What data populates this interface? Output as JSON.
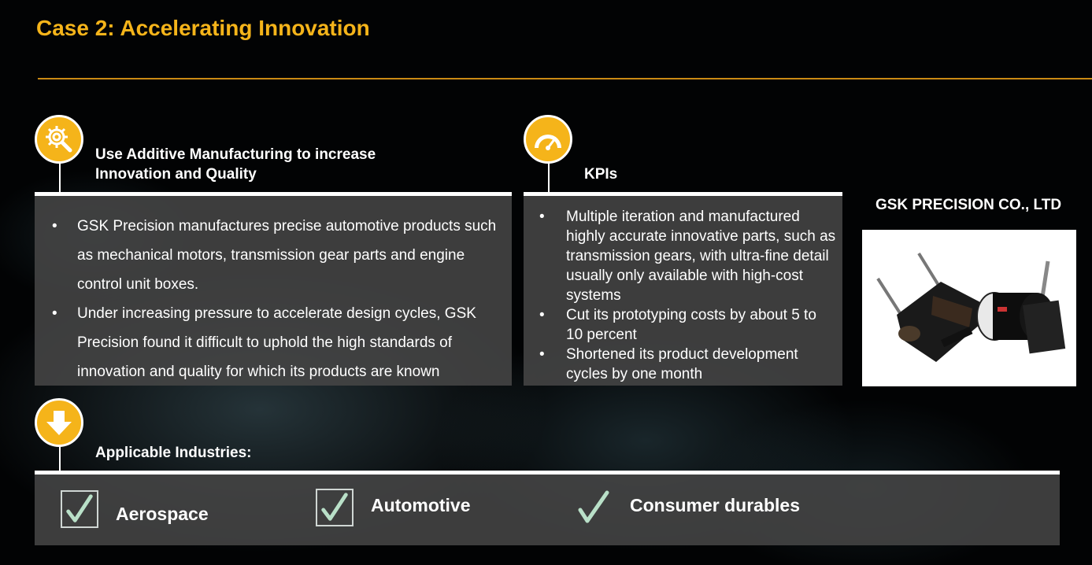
{
  "title": "Case 2: Accelerating Innovation",
  "case_section": {
    "heading_line1": "Use Additive Manufacturing to increase",
    "heading_line2": "Innovation and Quality",
    "bullets": [
      "GSK Precision manufactures precise automotive products such as mechanical motors, transmission gear parts and engine control unit boxes.",
      "Under increasing pressure to accelerate design cycles, GSK Precision found it difficult to uphold the high standards of innovation and quality for which its products are known"
    ]
  },
  "kpi_section": {
    "heading": "KPIs",
    "bullets": [
      "Multiple iteration and manufactured highly accurate innovative parts, such as transmission gears, with ultra-fine detail usually only available with high-cost systems",
      "Cut its prototyping costs by about 5 to 10 percent",
      "Shortened its product development cycles by one month"
    ]
  },
  "company": {
    "name": "GSK PRECISION CO., LTD",
    "image_icon": "motor-product-photo"
  },
  "industries": {
    "heading": "Applicable Industries:",
    "items": [
      "Aerospace",
      "Automotive",
      "Consumer durables"
    ]
  },
  "colors": {
    "accent": "#F5B41A",
    "rule": "#C98A14",
    "panel": "#464646",
    "check": "#B9E0C8"
  },
  "icons": {
    "case_icon": "gear-magnifier-icon",
    "kpi_icon": "speedometer-icon",
    "industries_icon": "down-arrow-icon",
    "check_icon": "checkmark-icon"
  },
  "bullet_char": "•"
}
